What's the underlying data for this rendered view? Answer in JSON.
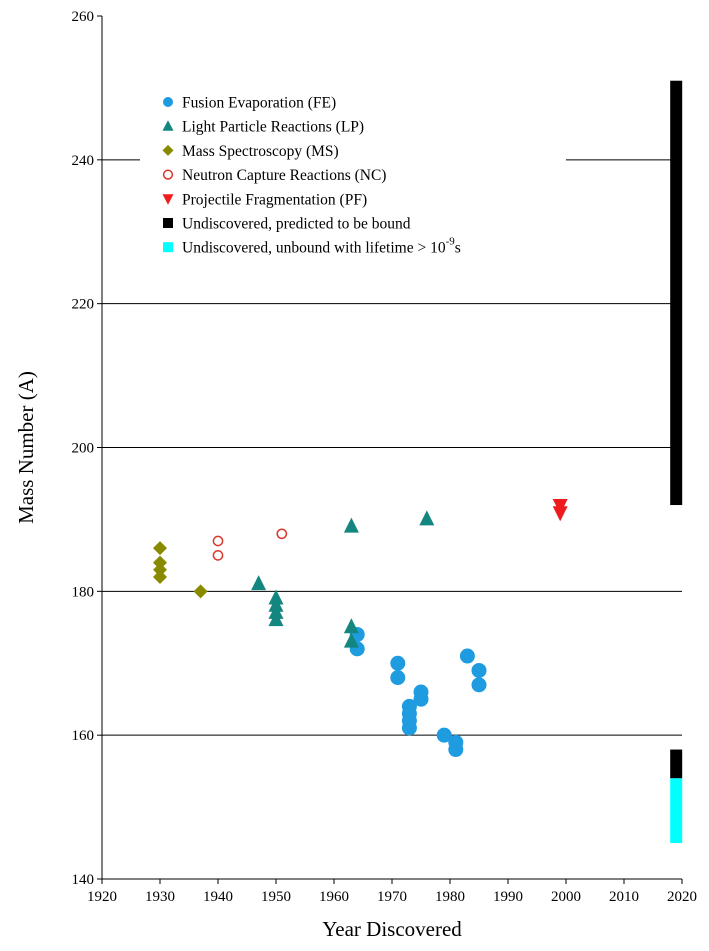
{
  "chart_data": {
    "type": "scatter",
    "xlabel": "Year Discovered",
    "ylabel": "Mass Number (A)",
    "xlim": [
      1920,
      2020
    ],
    "ylim": [
      140,
      260
    ],
    "x_ticks": [
      "1920",
      "1930",
      "1940",
      "1950",
      "1960",
      "1970",
      "1980",
      "1990",
      "2000",
      "2010",
      "2020"
    ],
    "y_ticks": [
      "140",
      "160",
      "180",
      "200",
      "220",
      "240",
      "260"
    ],
    "gridlines_y": [
      160,
      180,
      200,
      220,
      240
    ],
    "legend_position": "top-left",
    "series": [
      {
        "name": "Fusion Evaporation (FE)",
        "marker": "circle",
        "color": "#1f9ce0",
        "points": [
          [
            1964,
            174
          ],
          [
            1964,
            172
          ],
          [
            1971,
            170
          ],
          [
            1971,
            168
          ],
          [
            1973,
            164
          ],
          [
            1973,
            163
          ],
          [
            1973,
            162
          ],
          [
            1973,
            161
          ],
          [
            1975,
            166
          ],
          [
            1975,
            165
          ],
          [
            1979,
            160
          ],
          [
            1981,
            159
          ],
          [
            1981,
            158
          ],
          [
            1983,
            171
          ],
          [
            1985,
            169
          ],
          [
            1985,
            167
          ]
        ]
      },
      {
        "name": "Light Particle Reactions (LP)",
        "marker": "triangle-up",
        "color": "#138680",
        "points": [
          [
            1947,
            181
          ],
          [
            1950,
            179
          ],
          [
            1950,
            178
          ],
          [
            1950,
            177
          ],
          [
            1950,
            176
          ],
          [
            1963,
            189
          ],
          [
            1963,
            175
          ],
          [
            1963,
            173
          ],
          [
            1976,
            190
          ]
        ]
      },
      {
        "name": "Mass Spectroscopy (MS)",
        "marker": "diamond",
        "color": "#8a8a00",
        "points": [
          [
            1930,
            186
          ],
          [
            1930,
            184
          ],
          [
            1930,
            183
          ],
          [
            1930,
            182
          ],
          [
            1937,
            180
          ]
        ]
      },
      {
        "name": "Neutron Capture Reactions (NC)",
        "marker": "circle-open",
        "color": "#d8382c",
        "points": [
          [
            1940,
            187
          ],
          [
            1940,
            185
          ],
          [
            1951,
            188
          ]
        ]
      },
      {
        "name": "Projectile Fragmentation (PF)",
        "marker": "triangle-down",
        "color": "#ee1c1c",
        "points": [
          [
            1999,
            192
          ],
          [
            1999,
            191
          ]
        ]
      },
      {
        "name": "Undiscovered, predicted to be bound",
        "marker": "bar",
        "color": "#000000",
        "x": 2019,
        "ranges": [
          [
            192,
            251
          ],
          [
            154,
            158
          ]
        ]
      },
      {
        "name": "Undiscovered, unbound with lifetime > 10",
        "name_superscript": "-9",
        "name_suffix": "s",
        "marker": "bar",
        "color": "#00ffff",
        "x": 2019,
        "ranges": [
          [
            145,
            154
          ]
        ]
      }
    ]
  }
}
